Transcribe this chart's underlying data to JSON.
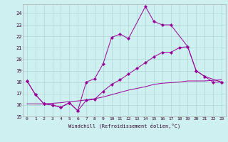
{
  "xlabel": "Windchill (Refroidissement éolien,°C)",
  "background_color": "#cff0f0",
  "grid_color": "#aad8d8",
  "line_color": "#990099",
  "xlim": [
    -0.5,
    23.5
  ],
  "ylim": [
    15,
    24.8
  ],
  "yticks": [
    15,
    16,
    17,
    18,
    19,
    20,
    21,
    22,
    23,
    24
  ],
  "xticks": [
    0,
    1,
    2,
    3,
    4,
    5,
    6,
    7,
    8,
    9,
    10,
    11,
    12,
    13,
    14,
    15,
    16,
    17,
    18,
    19,
    20,
    21,
    22,
    23
  ],
  "series": [
    {
      "x": [
        0,
        1,
        2,
        3,
        4,
        5,
        6,
        7,
        8,
        9,
        10,
        11,
        12,
        14,
        15,
        16,
        17,
        19,
        20,
        21,
        23
      ],
      "y": [
        18.1,
        16.9,
        16.1,
        16.0,
        15.8,
        16.2,
        15.5,
        18.0,
        18.3,
        19.6,
        21.9,
        22.2,
        21.8,
        24.6,
        23.3,
        23.0,
        23.0,
        21.1,
        19.0,
        18.5,
        18.0
      ],
      "marker": true
    },
    {
      "x": [
        0,
        1,
        2,
        3,
        4,
        5,
        6,
        7,
        8,
        9,
        10,
        11,
        12,
        13,
        14,
        15,
        16,
        17,
        18,
        19,
        20,
        21,
        22,
        23
      ],
      "y": [
        18.1,
        16.9,
        16.1,
        16.0,
        15.8,
        16.2,
        15.5,
        16.4,
        16.5,
        17.2,
        17.8,
        18.2,
        18.7,
        19.2,
        19.7,
        20.2,
        20.6,
        20.6,
        21.0,
        21.1,
        19.0,
        18.5,
        18.0,
        18.0
      ],
      "marker": true
    },
    {
      "x": [
        0,
        1,
        2,
        3,
        4,
        5,
        6,
        7,
        8,
        9,
        10,
        11,
        12,
        13,
        14,
        15,
        16,
        17,
        18,
        19,
        20,
        21,
        22,
        23
      ],
      "y": [
        16.1,
        16.1,
        16.1,
        16.15,
        16.2,
        16.3,
        16.35,
        16.45,
        16.55,
        16.7,
        16.9,
        17.1,
        17.3,
        17.45,
        17.6,
        17.8,
        17.9,
        17.95,
        18.0,
        18.1,
        18.1,
        18.1,
        18.15,
        18.2
      ],
      "marker": false
    }
  ]
}
